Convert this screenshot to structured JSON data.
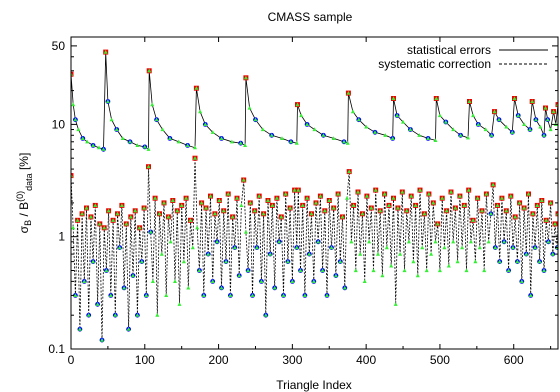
{
  "chart_data": {
    "type": "line",
    "title": "CMASS sample",
    "xlabel": "Triangle Index",
    "ylabel": {
      "sigma": "σ",
      "sigma_sub": "B",
      "slash": " / B",
      "sup": "(0)",
      "sub": "data",
      "unit": " [%]"
    },
    "xlim": [
      0,
      660
    ],
    "ylim": [
      0.1,
      60
    ],
    "yscale": "log",
    "grid": false,
    "legend_position": "top-right",
    "x_ticks": [
      {
        "v": 0,
        "label": "0"
      },
      {
        "v": 100,
        "label": "100"
      },
      {
        "v": 200,
        "label": "200"
      },
      {
        "v": 300,
        "label": "300"
      },
      {
        "v": 400,
        "label": "400"
      },
      {
        "v": 500,
        "label": "500"
      },
      {
        "v": 600,
        "label": "600"
      }
    ],
    "y_ticks": [
      {
        "v": 0.1,
        "label": "0.1"
      },
      {
        "v": 1,
        "label": "1"
      },
      {
        "v": 10,
        "label": "10"
      },
      {
        "v": 50,
        "label": "50"
      }
    ],
    "legend": [
      {
        "label": "statistical errors",
        "style": "solid"
      },
      {
        "label": "systematic correction",
        "style": "dashed"
      }
    ],
    "colors": {
      "solid_line": "#000000",
      "dashed_line": "#000000",
      "blue_points": "#0000ff",
      "green_points": "#33ee33",
      "red_points": "#ee0000"
    },
    "series": [
      {
        "name": "statistical errors",
        "style": "solid",
        "points": [
          [
            0,
            28
          ],
          [
            3,
            15
          ],
          [
            6,
            11
          ],
          [
            10,
            9
          ],
          [
            16,
            7.5
          ],
          [
            22,
            7
          ],
          [
            30,
            6.5
          ],
          [
            38,
            6.2
          ],
          [
            44,
            6
          ],
          [
            47,
            44
          ],
          [
            50,
            16
          ],
          [
            55,
            11
          ],
          [
            62,
            9
          ],
          [
            70,
            7.5
          ],
          [
            80,
            7
          ],
          [
            90,
            6.5
          ],
          [
            100,
            6.3
          ],
          [
            105,
            6
          ],
          [
            106,
            30
          ],
          [
            110,
            15
          ],
          [
            116,
            11
          ],
          [
            124,
            9
          ],
          [
            134,
            7.5
          ],
          [
            146,
            7
          ],
          [
            158,
            6.5
          ],
          [
            168,
            6.2
          ],
          [
            170,
            21
          ],
          [
            175,
            13
          ],
          [
            182,
            10
          ],
          [
            192,
            8.5
          ],
          [
            204,
            7.5
          ],
          [
            218,
            7
          ],
          [
            230,
            6.8
          ],
          [
            236,
            6.5
          ],
          [
            237,
            26
          ],
          [
            242,
            14
          ],
          [
            250,
            11
          ],
          [
            260,
            9
          ],
          [
            272,
            8
          ],
          [
            286,
            7.5
          ],
          [
            298,
            7
          ],
          [
            306,
            6.8
          ],
          [
            307,
            15
          ],
          [
            312,
            12
          ],
          [
            320,
            10
          ],
          [
            330,
            9
          ],
          [
            342,
            8
          ],
          [
            356,
            7.5
          ],
          [
            370,
            7
          ],
          [
            375,
            6.8
          ],
          [
            376,
            19
          ],
          [
            382,
            13
          ],
          [
            390,
            11
          ],
          [
            400,
            9.5
          ],
          [
            412,
            8.5
          ],
          [
            426,
            8
          ],
          [
            436,
            7.5
          ],
          [
            437,
            17
          ],
          [
            442,
            12
          ],
          [
            450,
            10.5
          ],
          [
            460,
            9
          ],
          [
            472,
            8
          ],
          [
            484,
            7.5
          ],
          [
            494,
            7.2
          ],
          [
            495,
            17
          ],
          [
            500,
            12
          ],
          [
            508,
            10.5
          ],
          [
            518,
            9
          ],
          [
            528,
            8
          ],
          [
            538,
            7.6
          ],
          [
            540,
            16
          ],
          [
            545,
            12
          ],
          [
            552,
            10
          ],
          [
            562,
            9
          ],
          [
            570,
            8
          ],
          [
            574,
            13
          ],
          [
            580,
            11
          ],
          [
            590,
            9.5
          ],
          [
            598,
            8.5
          ],
          [
            601,
            17
          ],
          [
            606,
            12
          ],
          [
            614,
            10
          ],
          [
            622,
            9
          ],
          [
            625,
            16
          ],
          [
            630,
            11
          ],
          [
            636,
            9.5
          ],
          [
            641,
            8
          ],
          [
            643,
            14
          ],
          [
            646,
            11
          ],
          [
            650,
            9
          ],
          [
            654,
            13
          ],
          [
            657,
            10
          ],
          [
            660,
            15
          ]
        ]
      },
      {
        "name": "systematic correction",
        "style": "dashed",
        "points": [
          [
            0,
            3.5
          ],
          [
            3,
            1.2
          ],
          [
            6,
            0.3
          ],
          [
            9,
            1.4
          ],
          [
            12,
            0.15
          ],
          [
            15,
            1.6
          ],
          [
            18,
            0.4
          ],
          [
            21,
            1.8
          ],
          [
            24,
            0.2
          ],
          [
            27,
            1.5
          ],
          [
            30,
            0.6
          ],
          [
            33,
            1.9
          ],
          [
            36,
            0.25
          ],
          [
            39,
            1.3
          ],
          [
            42,
            0.12
          ],
          [
            45,
            1.2
          ],
          [
            48,
            0.5
          ],
          [
            51,
            1.7
          ],
          [
            54,
            0.3
          ],
          [
            57,
            1.4
          ],
          [
            60,
            0.2
          ],
          [
            63,
            1.6
          ],
          [
            66,
            0.8
          ],
          [
            69,
            1.9
          ],
          [
            72,
            0.35
          ],
          [
            75,
            1.3
          ],
          [
            78,
            0.15
          ],
          [
            81,
            1.5
          ],
          [
            84,
            0.45
          ],
          [
            87,
            1.7
          ],
          [
            90,
            0.2
          ],
          [
            93,
            1.2
          ],
          [
            96,
            0.6
          ],
          [
            99,
            1.8
          ],
          [
            102,
            0.3
          ],
          [
            105,
            4.2
          ],
          [
            108,
            1.1
          ],
          [
            111,
            0.4
          ],
          [
            114,
            2.2
          ],
          [
            117,
            0.2
          ],
          [
            120,
            1.6
          ],
          [
            123,
            0.7
          ],
          [
            126,
            2.0
          ],
          [
            129,
            0.3
          ],
          [
            132,
            1.5
          ],
          [
            135,
            0.9
          ],
          [
            138,
            2.1
          ],
          [
            141,
            0.4
          ],
          [
            144,
            1.7
          ],
          [
            147,
            0.25
          ],
          [
            150,
            1.9
          ],
          [
            153,
            0.6
          ],
          [
            156,
            2.2
          ],
          [
            159,
            0.35
          ],
          [
            162,
            1.4
          ],
          [
            165,
            0.8
          ],
          [
            168,
            5
          ],
          [
            171,
            1.2
          ],
          [
            174,
            0.5
          ],
          [
            177,
            2.0
          ],
          [
            180,
            0.3
          ],
          [
            183,
            1.8
          ],
          [
            186,
            0.7
          ],
          [
            189,
            2.3
          ],
          [
            192,
            0.4
          ],
          [
            195,
            1.6
          ],
          [
            198,
            0.9
          ],
          [
            201,
            2.1
          ],
          [
            204,
            0.35
          ],
          [
            207,
            1.7
          ],
          [
            210,
            0.6
          ],
          [
            213,
            2.4
          ],
          [
            216,
            0.3
          ],
          [
            219,
            1.5
          ],
          [
            222,
            0.8
          ],
          [
            225,
            2.2
          ],
          [
            228,
            0.45
          ],
          [
            231,
            1.9
          ],
          [
            234,
            3.2
          ],
          [
            237,
            1.1
          ],
          [
            240,
            0.5
          ],
          [
            243,
            2.0
          ],
          [
            246,
            0.3
          ],
          [
            249,
            1.7
          ],
          [
            252,
            0.8
          ],
          [
            255,
            2.3
          ],
          [
            258,
            0.4
          ],
          [
            261,
            1.6
          ],
          [
            264,
            0.2
          ],
          [
            267,
            2.1
          ],
          [
            270,
            0.7
          ],
          [
            273,
            1.9
          ],
          [
            276,
            0.35
          ],
          [
            279,
            2.2
          ],
          [
            282,
            0.9
          ],
          [
            285,
            1.5
          ],
          [
            288,
            0.3
          ],
          [
            291,
            2.4
          ],
          [
            294,
            0.6
          ],
          [
            297,
            1.8
          ],
          [
            300,
            0.4
          ],
          [
            303,
            2.6
          ],
          [
            306,
            0.8
          ],
          [
            308,
            2.6
          ],
          [
            311,
            0.5
          ],
          [
            314,
            1.9
          ],
          [
            317,
            0.3
          ],
          [
            320,
            2.2
          ],
          [
            323,
            0.7
          ],
          [
            326,
            1.6
          ],
          [
            329,
            0.4
          ],
          [
            332,
            2.0
          ],
          [
            335,
            0.9
          ],
          [
            338,
            2.3
          ],
          [
            341,
            0.5
          ],
          [
            344,
            1.7
          ],
          [
            347,
            0.3
          ],
          [
            350,
            2.1
          ],
          [
            353,
            0.8
          ],
          [
            356,
            1.8
          ],
          [
            359,
            0.45
          ],
          [
            362,
            2.4
          ],
          [
            365,
            0.6
          ],
          [
            368,
            1.5
          ],
          [
            371,
            0.35
          ],
          [
            374,
            2.2
          ],
          [
            377,
            3.8
          ],
          [
            380,
            0.9
          ],
          [
            383,
            1.9
          ],
          [
            386,
            0.5
          ],
          [
            389,
            2.5
          ],
          [
            392,
            0.7
          ],
          [
            395,
            1.6
          ],
          [
            398,
            0.4
          ],
          [
            401,
            2.3
          ],
          [
            404,
            0.9
          ],
          [
            407,
            1.8
          ],
          [
            410,
            0.5
          ],
          [
            413,
            2.6
          ],
          [
            416,
            0.7
          ],
          [
            419,
            1.7
          ],
          [
            422,
            0.45
          ],
          [
            425,
            2.4
          ],
          [
            428,
            0.8
          ],
          [
            431,
            1.9
          ],
          [
            434,
            0.55
          ],
          [
            437,
            2.2
          ],
          [
            440,
            0.25
          ],
          [
            443,
            1.8
          ],
          [
            446,
            0.7
          ],
          [
            449,
            2.5
          ],
          [
            452,
            0.5
          ],
          [
            455,
            1.7
          ],
          [
            458,
            0.9
          ],
          [
            461,
            2.3
          ],
          [
            464,
            0.6
          ],
          [
            467,
            1.9
          ],
          [
            470,
            0.45
          ],
          [
            473,
            2.6
          ],
          [
            476,
            0.8
          ],
          [
            479,
            1.6
          ],
          [
            482,
            0.5
          ],
          [
            485,
            2.4
          ],
          [
            488,
            0.7
          ],
          [
            491,
            2.0
          ],
          [
            494,
            0.9
          ],
          [
            497,
            1.3
          ],
          [
            500,
            0.5
          ],
          [
            503,
            2.2
          ],
          [
            506,
            0.8
          ],
          [
            509,
            1.7
          ],
          [
            512,
            0.55
          ],
          [
            515,
            2.5
          ],
          [
            518,
            0.9
          ],
          [
            521,
            1.8
          ],
          [
            524,
            0.6
          ],
          [
            527,
            2.3
          ],
          [
            530,
            0.8
          ],
          [
            533,
            1.9
          ],
          [
            536,
            0.5
          ],
          [
            539,
            2.6
          ],
          [
            542,
            0.9
          ],
          [
            545,
            1.4
          ],
          [
            548,
            0.6
          ],
          [
            551,
            2.2
          ],
          [
            554,
            0.8
          ],
          [
            557,
            1.7
          ],
          [
            560,
            0.5
          ],
          [
            563,
            2.4
          ],
          [
            566,
            0.9
          ],
          [
            569,
            1.6
          ],
          [
            572,
            2.9
          ],
          [
            575,
            0.8
          ],
          [
            578,
            1.9
          ],
          [
            581,
            0.6
          ],
          [
            584,
            2.2
          ],
          [
            587,
            0.9
          ],
          [
            590,
            1.7
          ],
          [
            593,
            0.5
          ],
          [
            596,
            2.3
          ],
          [
            599,
            0.8
          ],
          [
            602,
            1.5
          ],
          [
            605,
            0.6
          ],
          [
            608,
            2.0
          ],
          [
            611,
            0.4
          ],
          [
            614,
            1.8
          ],
          [
            617,
            0.7
          ],
          [
            620,
            2.4
          ],
          [
            623,
            0.3
          ],
          [
            626,
            1.6
          ],
          [
            629,
            0.8
          ],
          [
            632,
            1.9
          ],
          [
            635,
            0.6
          ],
          [
            638,
            2.1
          ],
          [
            641,
            0.5
          ],
          [
            644,
            1.4
          ],
          [
            647,
            0.9
          ],
          [
            650,
            2.0
          ],
          [
            653,
            0.7
          ],
          [
            656,
            1.3
          ],
          [
            659,
            0.8
          ],
          [
            660,
            1.6
          ]
        ]
      }
    ]
  }
}
